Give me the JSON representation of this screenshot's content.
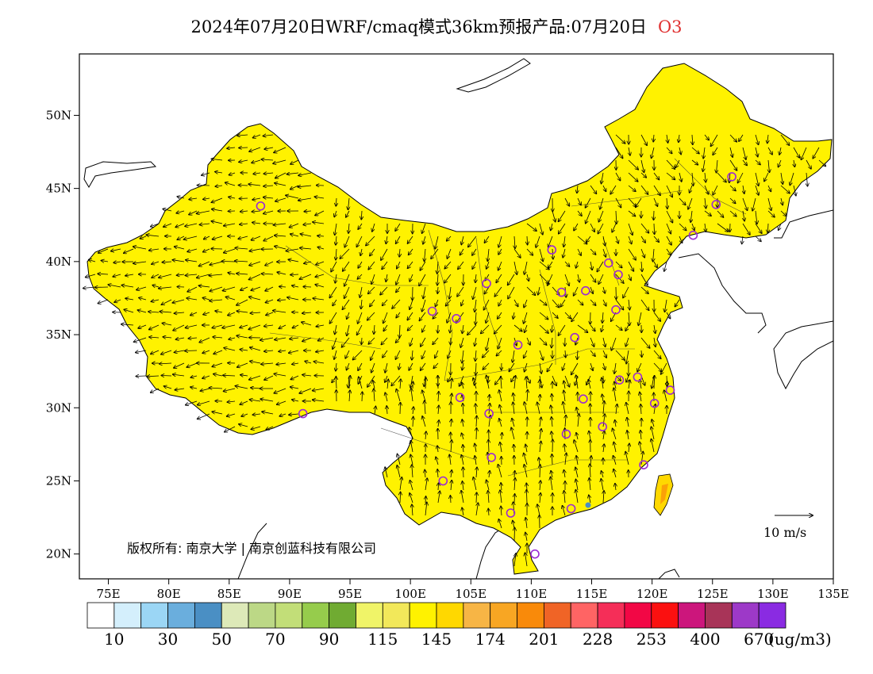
{
  "title": {
    "main": "2024年07月20日WRF/cmaq模式36km预报产品:07月20日",
    "species": "O3"
  },
  "map": {
    "lon_ticks": [
      "75E",
      "80E",
      "85E",
      "90E",
      "95E",
      "100E",
      "105E",
      "110E",
      "115E",
      "120E",
      "125E",
      "130E",
      "135E"
    ],
    "lat_ticks": [
      "20N",
      "25N",
      "30N",
      "35N",
      "40N",
      "45N",
      "50N"
    ],
    "copyright": "版权所有: 南京大学 | 南京创蓝科技有限公司",
    "wind_scale_label": "10  m/s"
  },
  "colorbar": {
    "labels": [
      "10",
      "30",
      "50",
      "70",
      "90",
      "115",
      "145",
      "174",
      "201",
      "228",
      "253",
      "400",
      "670"
    ],
    "unit": "(ug/m3)",
    "colors": [
      "#ffffff",
      "#d4effc",
      "#9bd6f5",
      "#6aaedd",
      "#4a8fc4",
      "#dde9b8",
      "#bcd886",
      "#c2de78",
      "#96cc4c",
      "#70ab32",
      "#f0f468",
      "#f2e85a",
      "#fff200",
      "#ffd800",
      "#f7b545",
      "#f8a623",
      "#f98a0a",
      "#f06426",
      "#ff6464",
      "#f52e58",
      "#f20745",
      "#fb1010",
      "#cc167c",
      "#a83458",
      "#9d39c8",
      "#8a2be2"
    ]
  },
  "stations": [
    {
      "lon": 87.6,
      "lat": 43.8
    },
    {
      "lon": 91.1,
      "lat": 29.6
    },
    {
      "lon": 101.8,
      "lat": 36.6
    },
    {
      "lon": 103.8,
      "lat": 36.1
    },
    {
      "lon": 106.3,
      "lat": 38.5
    },
    {
      "lon": 111.7,
      "lat": 40.8
    },
    {
      "lon": 112.5,
      "lat": 37.9
    },
    {
      "lon": 114.5,
      "lat": 38.0
    },
    {
      "lon": 116.4,
      "lat": 39.9
    },
    {
      "lon": 117.2,
      "lat": 39.1
    },
    {
      "lon": 117.0,
      "lat": 36.7
    },
    {
      "lon": 113.6,
      "lat": 34.8
    },
    {
      "lon": 108.9,
      "lat": 34.3
    },
    {
      "lon": 104.1,
      "lat": 30.7
    },
    {
      "lon": 106.5,
      "lat": 29.6
    },
    {
      "lon": 106.7,
      "lat": 26.6
    },
    {
      "lon": 102.7,
      "lat": 25.0
    },
    {
      "lon": 108.3,
      "lat": 22.8
    },
    {
      "lon": 110.3,
      "lat": 20.0
    },
    {
      "lon": 113.3,
      "lat": 23.1
    },
    {
      "lon": 112.9,
      "lat": 28.2
    },
    {
      "lon": 114.3,
      "lat": 30.6
    },
    {
      "lon": 115.9,
      "lat": 28.7
    },
    {
      "lon": 117.3,
      "lat": 31.9
    },
    {
      "lon": 118.8,
      "lat": 32.1
    },
    {
      "lon": 120.2,
      "lat": 30.3
    },
    {
      "lon": 121.5,
      "lat": 31.2
    },
    {
      "lon": 119.3,
      "lat": 26.1
    },
    {
      "lon": 123.4,
      "lat": 41.8
    },
    {
      "lon": 125.3,
      "lat": 43.9
    },
    {
      "lon": 126.6,
      "lat": 45.8
    }
  ]
}
